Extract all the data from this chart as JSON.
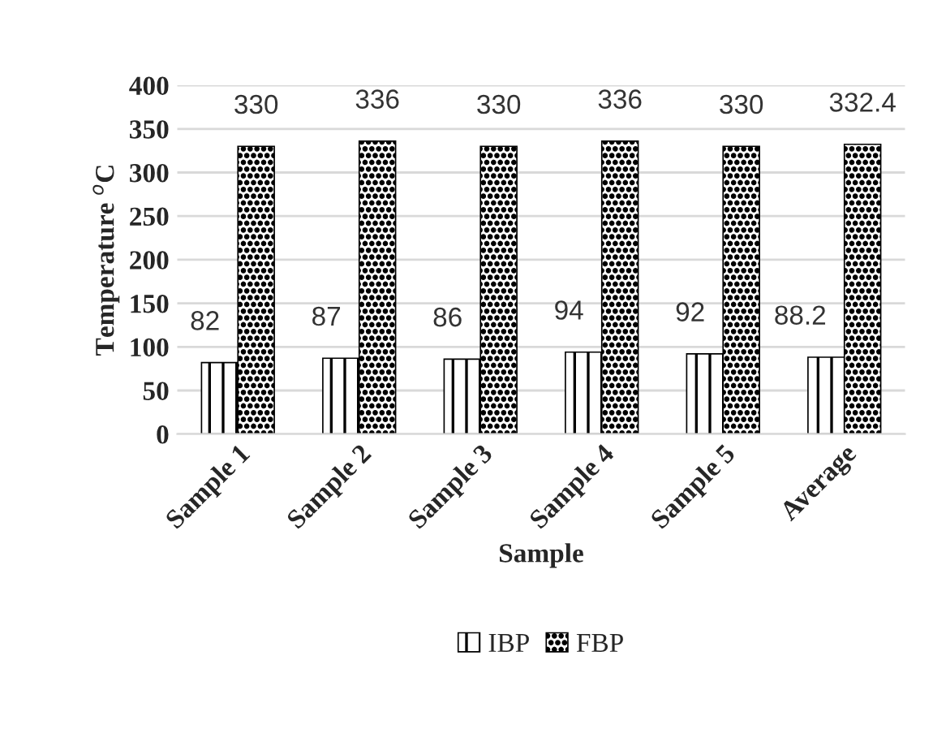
{
  "chart_data": {
    "type": "bar",
    "xlabel": "Sample",
    "ylabel": "Temperature $^{o}$C",
    "categories": [
      "Sample 1",
      "Sample 2",
      "Sample 3",
      "Sample 4",
      "Sample 5",
      "Average"
    ],
    "series": [
      {
        "name": "IBP",
        "color": "#000000",
        "values": [
          82,
          87,
          86,
          94,
          92,
          88.2
        ]
      },
      {
        "name": "FBP",
        "color": "#000000",
        "values": [
          330,
          336,
          330,
          336,
          330,
          332.4
        ]
      }
    ],
    "data_labels": true,
    "ylim": [
      0,
      400
    ],
    "yticks": [
      0,
      50,
      100,
      150,
      200,
      250,
      300,
      350,
      400
    ],
    "grid": "y",
    "legend": "bottom"
  }
}
